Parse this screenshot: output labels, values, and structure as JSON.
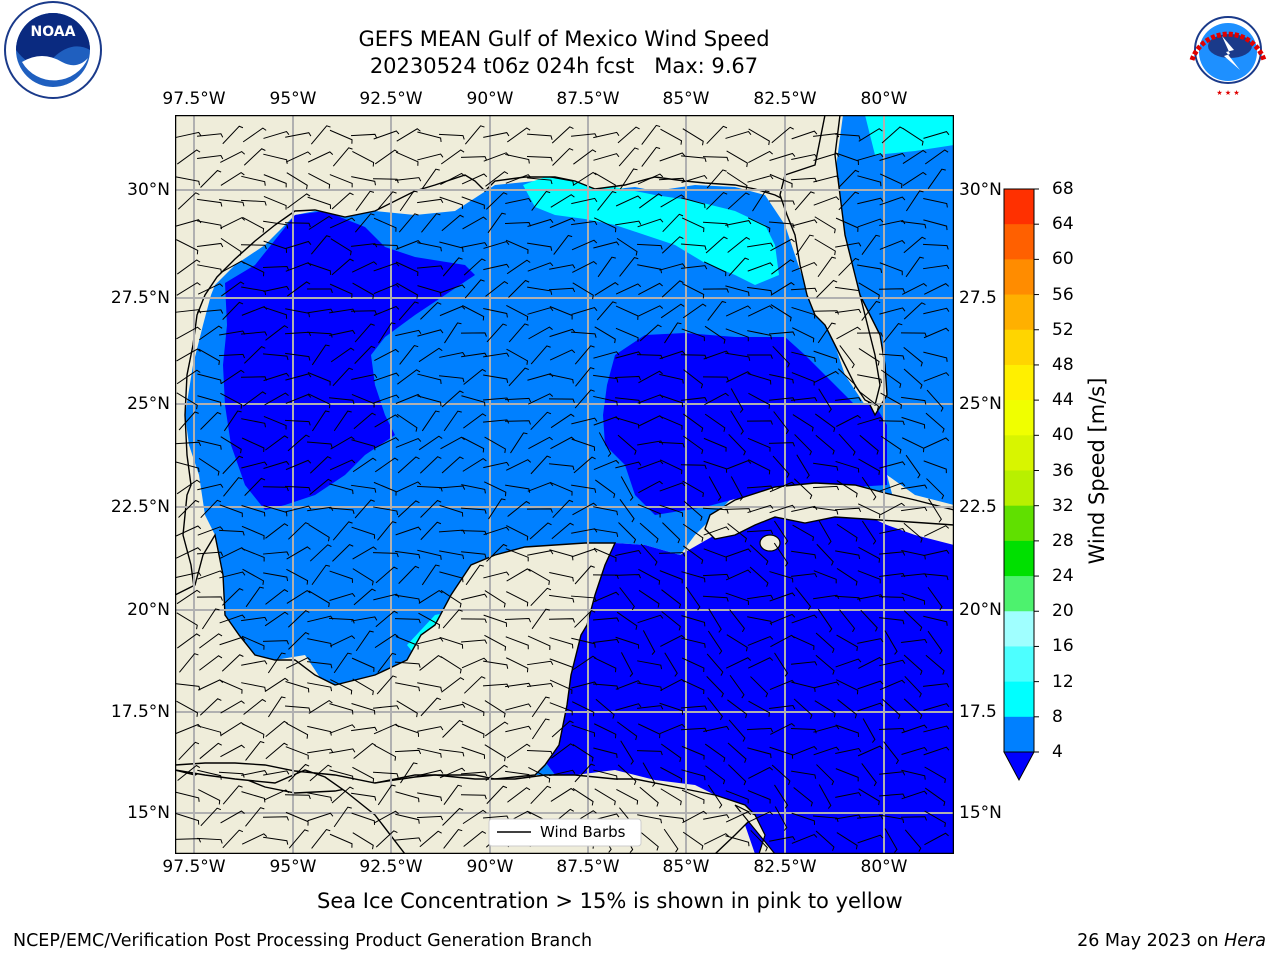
{
  "title": {
    "line1": "GEFS MEAN Gulf of Mexico Wind Speed",
    "line2": "20230524 t06z 024h fcst   Max: 9.67"
  },
  "axes": {
    "lon_labels": [
      "97.5°W",
      "95°W",
      "92.5°W",
      "90°W",
      "87.5°W",
      "85°W",
      "82.5°W",
      "80°W"
    ],
    "lat_labels": [
      "30°N",
      "27.5°N",
      "25°N",
      "22.5°N",
      "20°N",
      "17.5°N",
      "15°N"
    ],
    "lat_labels_right": [
      "30°N",
      "27.5",
      "25°N",
      "22.5",
      "20°N",
      "17.5",
      "15°N"
    ]
  },
  "legend": {
    "label": "Wind Barbs"
  },
  "colorbar": {
    "label": "Wind Speed [m/s]",
    "ticks": [
      "68",
      "64",
      "60",
      "56",
      "52",
      "48",
      "44",
      "40",
      "36",
      "32",
      "28",
      "24",
      "20",
      "16",
      "12",
      "8",
      "4"
    ],
    "colors": [
      "#ff0000",
      "#ff3000",
      "#ff6000",
      "#ff8c00",
      "#ffb000",
      "#ffd500",
      "#fff000",
      "#f0ff00",
      "#d8f500",
      "#b8f000",
      "#60e000",
      "#00e000",
      "#4df26e",
      "#a0ffff",
      "#4dffff",
      "#00ffff",
      "#0080ff",
      "#0000ff"
    ]
  },
  "logos": {
    "noaa": "NOAA",
    "nws": "NATIONAL WEATHER SERVICE"
  },
  "subtitle": "Sea Ice Concentration > 15% is shown in pink to yellow",
  "footer": {
    "left": "NCEP/EMC/Verification Post Processing Product Generation Branch",
    "right_date": "26 May 2023 on",
    "right_machine": "Hera"
  },
  "map_colors": {
    "land": "#efedda",
    "ocean_low": "#0000ff",
    "ocean_mid": "#0080ff",
    "ocean_high": "#00ffff",
    "grid": "#b0b0b0"
  }
}
